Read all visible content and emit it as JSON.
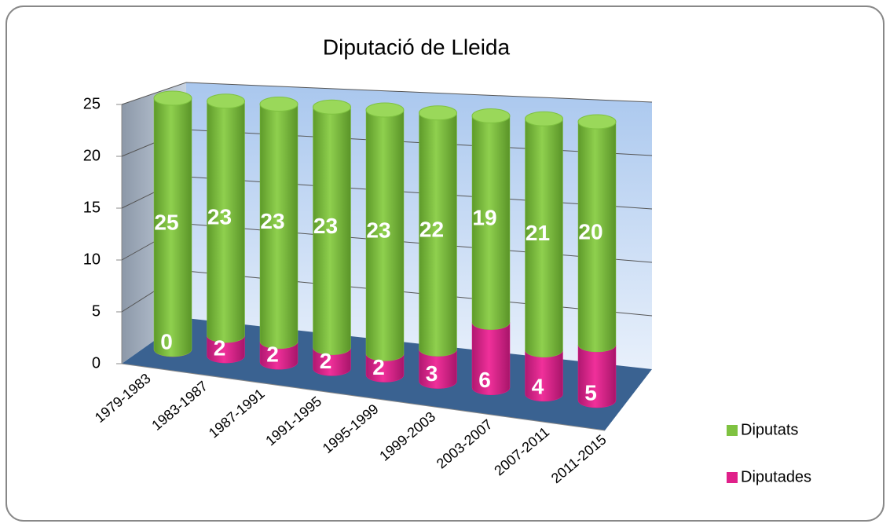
{
  "chart_data": {
    "type": "bar3d_stacked",
    "title": "Diputació de Lleida",
    "categories": [
      "1979-1983",
      "1983-1987",
      "1987-1991",
      "1991-1995",
      "1995-1999",
      "1999-2003",
      "2003-2007",
      "2007-2011",
      "2011-2015"
    ],
    "series": [
      {
        "name": "Diputades",
        "color": "#e0208a",
        "values": [
          0,
          2,
          2,
          2,
          2,
          3,
          6,
          4,
          5
        ]
      },
      {
        "name": "Diputats",
        "color": "#7fc241",
        "values": [
          25,
          23,
          23,
          23,
          23,
          22,
          19,
          21,
          20
        ]
      }
    ],
    "ylim": [
      0,
      25
    ],
    "yticks": [
      0,
      5,
      10,
      15,
      20,
      25
    ],
    "grid": true,
    "legend": "right"
  }
}
